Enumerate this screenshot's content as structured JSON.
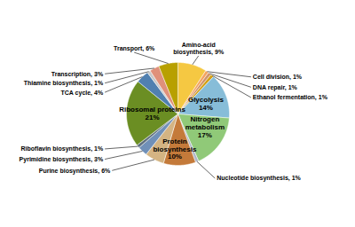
{
  "chart_data": {
    "type": "pie",
    "categories": [
      "Amino-acid\nbiosynthesis, 9%",
      "Cell division, 1%",
      "DNA repair, 1%",
      "Ethanol fermentation, 1%",
      "Glycolysis\n14%",
      "Nitrogen\nmetabolism\n17%",
      "Nucleotide biosynthesis, 1%",
      "Protein\nbiosynthesis\n10%",
      "Purine biosynthesis, 6%",
      "Pyrimidine biosynthesis, 3%",
      "Riboflavin biosynthesis, 1%",
      "Ribosomal proteins\n21%",
      "TCA cycle, 4%",
      "Thiamine biosynthesis, 1%",
      "Transcription, 3%",
      "Transport, 6%"
    ],
    "values": [
      9,
      1,
      1,
      1,
      14,
      17,
      1,
      10,
      6,
      3,
      1,
      21,
      4,
      1,
      3,
      6
    ],
    "colors": [
      "#f5c842",
      "#f4a460",
      "#d2946b",
      "#d4a017",
      "#87bdd8",
      "#90c978",
      "#b0b8c8",
      "#c47a3a",
      "#d4b483",
      "#7090b8",
      "#607080",
      "#6b8e23",
      "#5080b0",
      "#c8c8c8",
      "#e0907a",
      "#b8a000"
    ]
  }
}
